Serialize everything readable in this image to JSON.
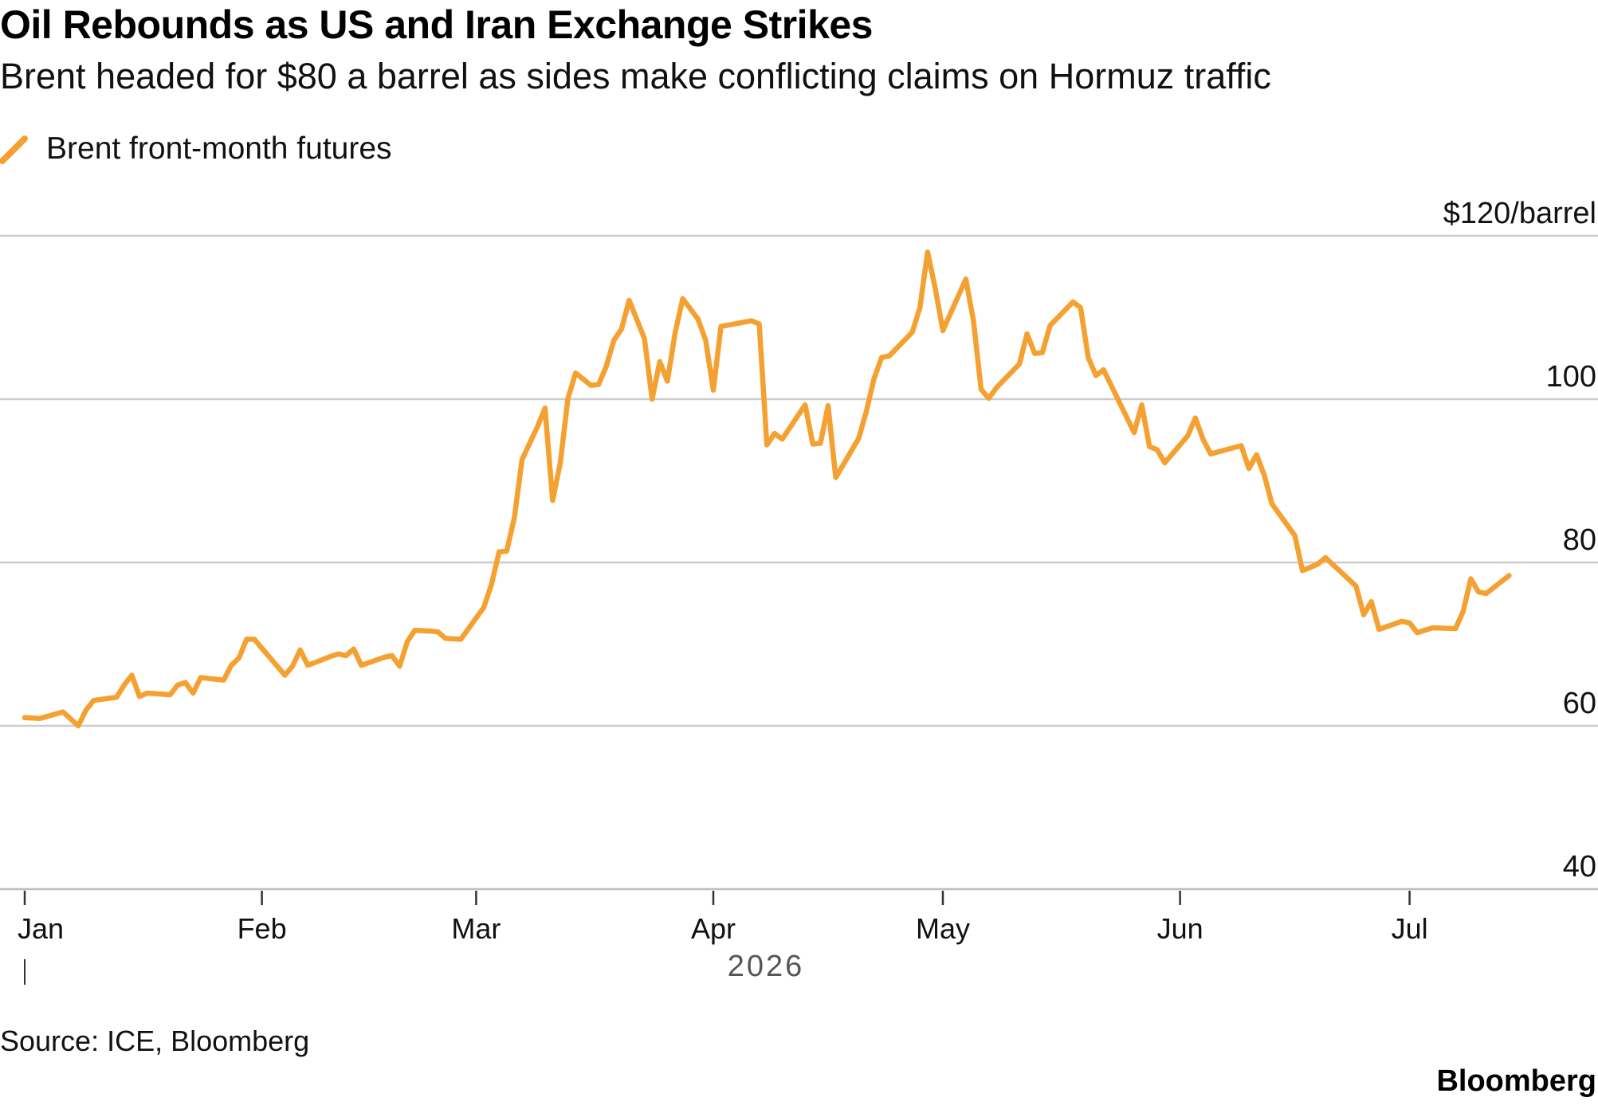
{
  "title": "Oil Rebounds as US and Iran Exchange Strikes",
  "subtitle": "Brent headed for $80 a barrel as sides make conflicting claims on Hormuz traffic",
  "source": "Source: ICE, Bloomberg",
  "brand": "Bloomberg",
  "colors": {
    "series": "#f5a131",
    "grid": "#cccccc",
    "axis_text": "#111111",
    "year_text": "#555555"
  },
  "chart_data": {
    "type": "line",
    "title": "Oil Rebounds as US and Iran Exchange Strikes",
    "subtitle": "Brent headed for $80 a barrel as sides make conflicting claims on Hormuz traffic",
    "xlabel": "2026",
    "ylabel": "",
    "ylim": [
      40,
      120
    ],
    "y_ticks": [
      {
        "value": 120,
        "label": "$120/barrel"
      },
      {
        "value": 100,
        "label": "100"
      },
      {
        "value": 80,
        "label": "80"
      },
      {
        "value": 60,
        "label": "60"
      },
      {
        "value": 40,
        "label": "40"
      }
    ],
    "x_ticks": [
      {
        "date": "2026-01-01",
        "label": "Jan"
      },
      {
        "date": "2026-02-01",
        "label": "Feb"
      },
      {
        "date": "2026-03-01",
        "label": "Mar"
      },
      {
        "date": "2026-04-01",
        "label": "Apr"
      },
      {
        "date": "2026-05-01",
        "label": "May"
      },
      {
        "date": "2026-06-01",
        "label": "Jun"
      },
      {
        "date": "2026-07-01",
        "label": "Jul"
      }
    ],
    "x_year_label": "2026",
    "grid": true,
    "legend_position": "top-left",
    "series": [
      {
        "name": "Brent front-month futures",
        "color": "#f5a131",
        "points": [
          [
            "2026-01-01",
            61.0
          ],
          [
            "2026-01-03",
            60.9
          ],
          [
            "2026-01-06",
            61.7
          ],
          [
            "2026-01-08",
            60.0
          ],
          [
            "2026-01-09",
            61.9
          ],
          [
            "2026-01-10",
            63.1
          ],
          [
            "2026-01-13",
            63.5
          ],
          [
            "2026-01-14",
            65.0
          ],
          [
            "2026-01-15",
            66.2
          ],
          [
            "2026-01-16",
            63.6
          ],
          [
            "2026-01-17",
            64.0
          ],
          [
            "2026-01-20",
            63.8
          ],
          [
            "2026-01-21",
            65.0
          ],
          [
            "2026-01-22",
            65.3
          ],
          [
            "2026-01-23",
            64.0
          ],
          [
            "2026-01-24",
            65.9
          ],
          [
            "2026-01-27",
            65.6
          ],
          [
            "2026-01-28",
            67.4
          ],
          [
            "2026-01-29",
            68.3
          ],
          [
            "2026-01-30",
            70.6
          ],
          [
            "2026-01-31",
            70.6
          ],
          [
            "2026-02-02",
            68.4
          ],
          [
            "2026-02-04",
            66.2
          ],
          [
            "2026-02-05",
            67.3
          ],
          [
            "2026-02-06",
            69.3
          ],
          [
            "2026-02-07",
            67.4
          ],
          [
            "2026-02-10",
            68.5
          ],
          [
            "2026-02-11",
            68.8
          ],
          [
            "2026-02-12",
            68.6
          ],
          [
            "2026-02-13",
            69.4
          ],
          [
            "2026-02-14",
            67.4
          ],
          [
            "2026-02-17",
            68.4
          ],
          [
            "2026-02-18",
            68.6
          ],
          [
            "2026-02-19",
            67.3
          ],
          [
            "2026-02-20",
            70.3
          ],
          [
            "2026-02-21",
            71.7
          ],
          [
            "2026-02-23",
            71.6
          ],
          [
            "2026-02-24",
            71.5
          ],
          [
            "2026-02-25",
            70.7
          ],
          [
            "2026-02-27",
            70.6
          ],
          [
            "2026-03-02",
            74.5
          ],
          [
            "2026-03-03",
            77.3
          ],
          [
            "2026-03-04",
            81.3
          ],
          [
            "2026-03-05",
            81.4
          ],
          [
            "2026-03-06",
            85.5
          ],
          [
            "2026-03-07",
            92.6
          ],
          [
            "2026-03-09",
            96.6
          ],
          [
            "2026-03-10",
            98.9
          ],
          [
            "2026-03-11",
            87.6
          ],
          [
            "2026-03-12",
            92.2
          ],
          [
            "2026-03-13",
            100.1
          ],
          [
            "2026-03-14",
            103.2
          ],
          [
            "2026-03-16",
            101.7
          ],
          [
            "2026-03-17",
            101.8
          ],
          [
            "2026-03-18",
            104.0
          ],
          [
            "2026-03-19",
            107.2
          ],
          [
            "2026-03-20",
            108.6
          ],
          [
            "2026-03-21",
            112.1
          ],
          [
            "2026-03-23",
            107.4
          ],
          [
            "2026-03-24",
            100.0
          ],
          [
            "2026-03-25",
            104.6
          ],
          [
            "2026-03-26",
            102.2
          ],
          [
            "2026-03-27",
            108.1
          ],
          [
            "2026-03-28",
            112.3
          ],
          [
            "2026-03-30",
            109.8
          ],
          [
            "2026-03-31",
            107.2
          ],
          [
            "2026-04-01",
            101.1
          ],
          [
            "2026-04-02",
            108.9
          ],
          [
            "2026-04-06",
            109.6
          ],
          [
            "2026-04-07",
            109.2
          ],
          [
            "2026-04-08",
            94.4
          ],
          [
            "2026-04-09",
            95.8
          ],
          [
            "2026-04-10",
            95.1
          ],
          [
            "2026-04-13",
            99.3
          ],
          [
            "2026-04-14",
            94.5
          ],
          [
            "2026-04-15",
            94.6
          ],
          [
            "2026-04-16",
            99.2
          ],
          [
            "2026-04-17",
            90.4
          ],
          [
            "2026-04-20",
            95.2
          ],
          [
            "2026-04-21",
            98.5
          ],
          [
            "2026-04-22",
            102.5
          ],
          [
            "2026-04-23",
            105.1
          ],
          [
            "2026-04-24",
            105.3
          ],
          [
            "2026-04-27",
            108.2
          ],
          [
            "2026-04-28",
            111.2
          ],
          [
            "2026-04-29",
            118.0
          ],
          [
            "2026-04-30",
            113.6
          ],
          [
            "2026-05-01",
            108.4
          ],
          [
            "2026-05-04",
            114.7
          ],
          [
            "2026-05-05",
            109.6
          ],
          [
            "2026-05-06",
            101.2
          ],
          [
            "2026-05-07",
            100.1
          ],
          [
            "2026-05-08",
            101.4
          ],
          [
            "2026-05-11",
            104.3
          ],
          [
            "2026-05-12",
            108.0
          ],
          [
            "2026-05-13",
            105.6
          ],
          [
            "2026-05-14",
            105.7
          ],
          [
            "2026-05-15",
            109.0
          ],
          [
            "2026-05-18",
            111.9
          ],
          [
            "2026-05-19",
            111.2
          ],
          [
            "2026-05-20",
            105.1
          ],
          [
            "2026-05-21",
            102.9
          ],
          [
            "2026-05-22",
            103.6
          ],
          [
            "2026-05-26",
            95.9
          ],
          [
            "2026-05-27",
            99.3
          ],
          [
            "2026-05-28",
            94.2
          ],
          [
            "2026-05-29",
            93.8
          ],
          [
            "2026-05-30",
            92.2
          ],
          [
            "2026-06-02",
            95.5
          ],
          [
            "2026-06-03",
            97.7
          ],
          [
            "2026-06-04",
            95.1
          ],
          [
            "2026-06-05",
            93.3
          ],
          [
            "2026-06-09",
            94.3
          ],
          [
            "2026-06-10",
            91.5
          ],
          [
            "2026-06-11",
            93.2
          ],
          [
            "2026-06-12",
            90.7
          ],
          [
            "2026-06-13",
            87.2
          ],
          [
            "2026-06-16",
            83.3
          ],
          [
            "2026-06-17",
            79.0
          ],
          [
            "2026-06-19",
            79.8
          ],
          [
            "2026-06-20",
            80.6
          ],
          [
            "2026-06-24",
            77.1
          ],
          [
            "2026-06-25",
            73.6
          ],
          [
            "2026-06-26",
            75.2
          ],
          [
            "2026-06-27",
            71.8
          ],
          [
            "2026-06-30",
            72.8
          ],
          [
            "2026-07-01",
            72.6
          ],
          [
            "2026-07-02",
            71.4
          ],
          [
            "2026-07-04",
            72.0
          ],
          [
            "2026-07-07",
            71.9
          ],
          [
            "2026-07-08",
            74.0
          ],
          [
            "2026-07-09",
            78.0
          ],
          [
            "2026-07-10",
            76.4
          ],
          [
            "2026-07-11",
            76.2
          ],
          [
            "2026-07-14",
            78.4
          ]
        ]
      }
    ]
  }
}
